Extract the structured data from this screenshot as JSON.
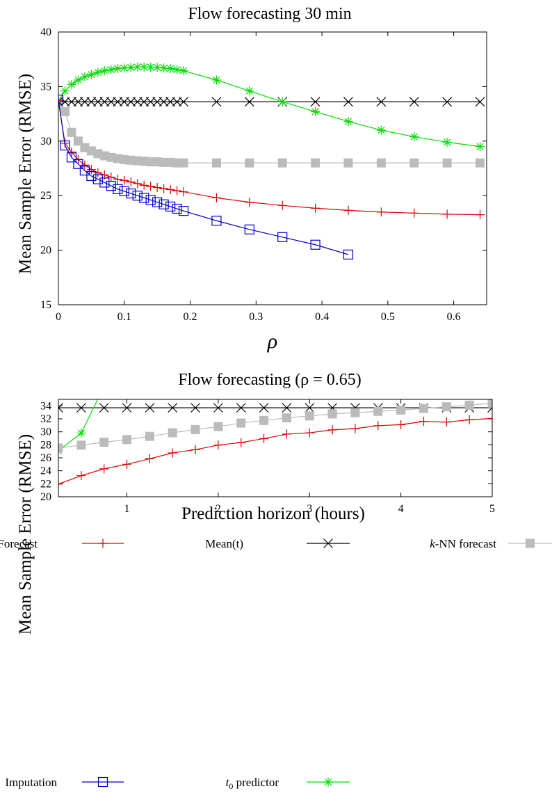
{
  "chart_data": [
    {
      "type": "line",
      "title": "Flow forecasting 30 min",
      "xlabel": "ρ",
      "ylabel": "Mean Sample Error (RMSE)",
      "xlim": [
        0,
        0.65
      ],
      "ylim": [
        15,
        40
      ],
      "xticks": [
        0,
        0.1,
        0.2,
        0.3,
        0.4,
        0.5,
        0.6
      ],
      "xtick_labels": [
        "0",
        "0.1",
        "0.2",
        "0.3",
        "0.4",
        "0.5",
        "0.6"
      ],
      "yticks": [
        15,
        20,
        25,
        30,
        35,
        40
      ],
      "ytick_labels": [
        "15",
        "20",
        "25",
        "30",
        "35",
        "40"
      ],
      "grid": false,
      "series": [
        {
          "name": "Mean(t)",
          "color": "#000000",
          "marker": "x",
          "x": [
            0,
            0.01,
            0.02,
            0.03,
            0.04,
            0.05,
            0.06,
            0.07,
            0.08,
            0.09,
            0.1,
            0.11,
            0.12,
            0.13,
            0.14,
            0.15,
            0.16,
            0.17,
            0.18,
            0.19,
            0.24,
            0.29,
            0.34,
            0.39,
            0.44,
            0.49,
            0.54,
            0.59,
            0.64
          ],
          "y": [
            33.6,
            33.6,
            33.6,
            33.6,
            33.6,
            33.6,
            33.6,
            33.6,
            33.6,
            33.6,
            33.6,
            33.6,
            33.6,
            33.6,
            33.6,
            33.6,
            33.6,
            33.6,
            33.6,
            33.6,
            33.6,
            33.6,
            33.6,
            33.6,
            33.6,
            33.6,
            33.6,
            33.6,
            33.6
          ]
        },
        {
          "name": "t0 predictor",
          "color": "#00dd00",
          "marker": "star",
          "x": [
            0,
            0.01,
            0.02,
            0.03,
            0.04,
            0.05,
            0.06,
            0.07,
            0.08,
            0.09,
            0.1,
            0.11,
            0.12,
            0.13,
            0.14,
            0.15,
            0.16,
            0.17,
            0.18,
            0.19,
            0.24,
            0.29,
            0.34,
            0.39,
            0.44,
            0.49,
            0.54,
            0.59,
            0.64
          ],
          "y": [
            33.7,
            34.6,
            35.2,
            35.6,
            35.9,
            36.1,
            36.3,
            36.45,
            36.55,
            36.65,
            36.7,
            36.75,
            36.8,
            36.8,
            36.78,
            36.75,
            36.7,
            36.65,
            36.55,
            36.45,
            35.6,
            34.6,
            33.6,
            32.7,
            31.8,
            31.0,
            30.4,
            29.9,
            29.5
          ]
        },
        {
          "name": "k-NN forecast",
          "color": "#bbbbbb",
          "marker": "square-filled",
          "x": [
            0.01,
            0.02,
            0.03,
            0.04,
            0.05,
            0.06,
            0.07,
            0.08,
            0.09,
            0.1,
            0.11,
            0.12,
            0.13,
            0.14,
            0.15,
            0.16,
            0.17,
            0.18,
            0.19,
            0.24,
            0.29,
            0.34,
            0.39,
            0.44,
            0.49,
            0.54,
            0.59,
            0.64
          ],
          "y": [
            32.7,
            30.8,
            30.0,
            29.4,
            29.1,
            28.85,
            28.65,
            28.5,
            28.4,
            28.3,
            28.25,
            28.2,
            28.15,
            28.1,
            28.1,
            28.05,
            28.05,
            28.0,
            28.0,
            28.0,
            28.0,
            28.0,
            28.0,
            28.0,
            28.0,
            28.0,
            28.0,
            28.0
          ]
        },
        {
          "name": "Forecast",
          "color": "#e00000",
          "marker": "plus",
          "x": [
            0,
            0.01,
            0.02,
            0.03,
            0.04,
            0.05,
            0.06,
            0.07,
            0.08,
            0.09,
            0.1,
            0.11,
            0.12,
            0.13,
            0.14,
            0.15,
            0.16,
            0.17,
            0.18,
            0.19,
            0.24,
            0.29,
            0.34,
            0.39,
            0.44,
            0.49,
            0.54,
            0.59,
            0.64
          ],
          "y": [
            33.7,
            29.8,
            29.0,
            28.3,
            27.8,
            27.4,
            27.1,
            26.9,
            26.7,
            26.5,
            26.4,
            26.25,
            26.1,
            25.95,
            25.85,
            25.75,
            25.65,
            25.55,
            25.45,
            25.35,
            24.8,
            24.4,
            24.1,
            23.85,
            23.65,
            23.5,
            23.4,
            23.3,
            23.25
          ]
        },
        {
          "name": "Imputation",
          "color": "#0000cc",
          "marker": "square-open",
          "x": [
            0,
            0.01,
            0.02,
            0.03,
            0.04,
            0.05,
            0.06,
            0.07,
            0.08,
            0.09,
            0.1,
            0.11,
            0.12,
            0.13,
            0.14,
            0.15,
            0.16,
            0.17,
            0.18,
            0.19,
            0.24,
            0.29,
            0.34,
            0.39,
            0.44
          ],
          "y": [
            33.8,
            29.6,
            28.5,
            27.9,
            27.3,
            26.8,
            26.5,
            26.2,
            25.9,
            25.6,
            25.4,
            25.2,
            25.0,
            24.8,
            24.6,
            24.4,
            24.2,
            24.0,
            23.8,
            23.6,
            22.7,
            21.9,
            21.2,
            20.5,
            19.6
          ]
        }
      ]
    },
    {
      "type": "line",
      "title": "Flow forecasting (ρ = 0.65)",
      "xlabel": "Prediction horizon (hours)",
      "ylabel": "Mean Sample Error (RMSE)",
      "xlim": [
        0.25,
        5
      ],
      "ylim": [
        20,
        35
      ],
      "xticks": [
        1,
        2,
        3,
        4,
        5
      ],
      "xtick_labels": [
        "1",
        "2",
        "3",
        "4",
        "5"
      ],
      "yticks": [
        20,
        22,
        24,
        26,
        28,
        30,
        32,
        34
      ],
      "ytick_labels": [
        "20",
        "22",
        "24",
        "26",
        "28",
        "30",
        "32",
        "34"
      ],
      "grid": false,
      "series": [
        {
          "name": "Mean(t)",
          "color": "#000000",
          "marker": "x",
          "x": [
            0.25,
            0.5,
            0.75,
            1,
            1.25,
            1.5,
            1.75,
            2,
            2.25,
            2.5,
            2.75,
            3,
            3.25,
            3.5,
            3.75,
            4,
            4.25,
            4.5,
            4.75,
            5
          ],
          "y": [
            33.7,
            33.7,
            33.7,
            33.7,
            33.7,
            33.7,
            33.7,
            33.7,
            33.7,
            33.7,
            33.7,
            33.7,
            33.7,
            33.7,
            33.7,
            33.7,
            33.7,
            33.7,
            33.7,
            33.7
          ]
        },
        {
          "name": "t0 predictor",
          "color": "#00dd00",
          "marker": "star",
          "x": [
            0.25,
            0.5,
            0.75
          ],
          "y": [
            27.1,
            29.8,
            37.0
          ]
        },
        {
          "name": "k-NN forecast",
          "color": "#bbbbbb",
          "marker": "square-filled",
          "x": [
            0.25,
            0.5,
            0.75,
            1,
            1.25,
            1.5,
            1.75,
            2,
            2.25,
            2.5,
            2.75,
            3,
            3.25,
            3.5,
            3.75,
            4,
            4.25,
            4.5,
            4.75,
            5
          ],
          "y": [
            27.5,
            27.95,
            28.4,
            28.8,
            29.3,
            29.85,
            30.35,
            30.8,
            31.35,
            31.75,
            32.15,
            32.45,
            32.75,
            32.95,
            33.15,
            33.35,
            33.6,
            33.85,
            34.1,
            34.4
          ]
        },
        {
          "name": "Forecast",
          "color": "#e00000",
          "marker": "plus",
          "x": [
            0.25,
            0.5,
            0.75,
            1,
            1.25,
            1.5,
            1.75,
            2,
            2.25,
            2.5,
            2.75,
            3,
            3.25,
            3.5,
            3.75,
            4,
            4.25,
            4.5,
            4.75,
            5
          ],
          "y": [
            21.95,
            23.25,
            24.3,
            25.0,
            25.85,
            26.75,
            27.25,
            27.95,
            28.35,
            28.95,
            29.65,
            29.85,
            30.3,
            30.5,
            30.95,
            31.1,
            31.6,
            31.5,
            31.85,
            32.05
          ]
        }
      ]
    }
  ],
  "legend": {
    "items": [
      {
        "label": "Forecast",
        "color": "#e00000",
        "marker": "plus"
      },
      {
        "label": "Mean(t)",
        "color": "#000000",
        "marker": "x"
      },
      {
        "label": "k-NN forecast",
        "italic_prefix": "k",
        "rest": "-NN forecast",
        "color": "#bbbbbb",
        "marker": "square-filled"
      },
      {
        "label": "Imputation",
        "color": "#0000cc",
        "marker": "square-open"
      },
      {
        "label": "t0 predictor",
        "italic_prefix": "t",
        "subscript": "0",
        "rest": " predictor",
        "color": "#00dd00",
        "marker": "star"
      }
    ]
  }
}
